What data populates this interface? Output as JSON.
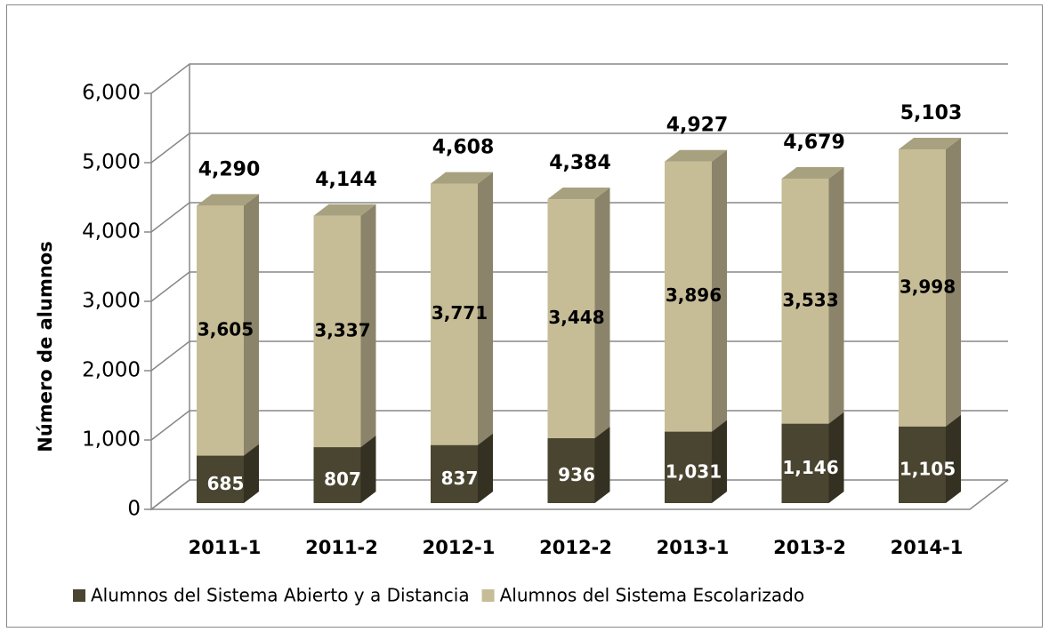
{
  "chart_data": {
    "type": "bar3d_stacked",
    "y_label": "Número de alumnos",
    "categories": [
      "2011-1",
      "2011-2",
      "2012-1",
      "2012-2",
      "2013-1",
      "2013-2",
      "2014-1"
    ],
    "series": [
      {
        "name": "Alumnos del Sistema Abierto y a Distancia",
        "color": "#4a4530",
        "values": [
          685,
          807,
          837,
          936,
          1031,
          1146,
          1105
        ],
        "value_labels": [
          "685",
          "807",
          "837",
          "936",
          "1,031",
          "1,146",
          "1,105"
        ]
      },
      {
        "name": "Alumnos del Sistema Escolarizado",
        "color": "#c6bd97",
        "values": [
          3605,
          3337,
          3771,
          3448,
          3896,
          3533,
          3998
        ],
        "value_labels": [
          "3,605",
          "3,337",
          "3,771",
          "3,448",
          "3,896",
          "3,533",
          "3,998"
        ]
      }
    ],
    "totals": [
      4290,
      4144,
      4608,
      4384,
      4927,
      4679,
      5103
    ],
    "total_labels": [
      "4,290",
      "4,144",
      "4,608",
      "4,384",
      "4,927",
      "4,679",
      "5,103"
    ],
    "ylim": [
      0,
      6000
    ],
    "yticks": [
      0,
      {
        "value": 1000,
        "label": "1,000"
      },
      {
        "value": 2000,
        "label": "2,000"
      },
      {
        "value": 3000,
        "label": "3,000"
      },
      {
        "value": 4000,
        "label": "4,000"
      },
      {
        "value": 5000,
        "label": "5,000"
      },
      {
        "value": 6000,
        "label": "6,000"
      }
    ],
    "grid": true
  }
}
